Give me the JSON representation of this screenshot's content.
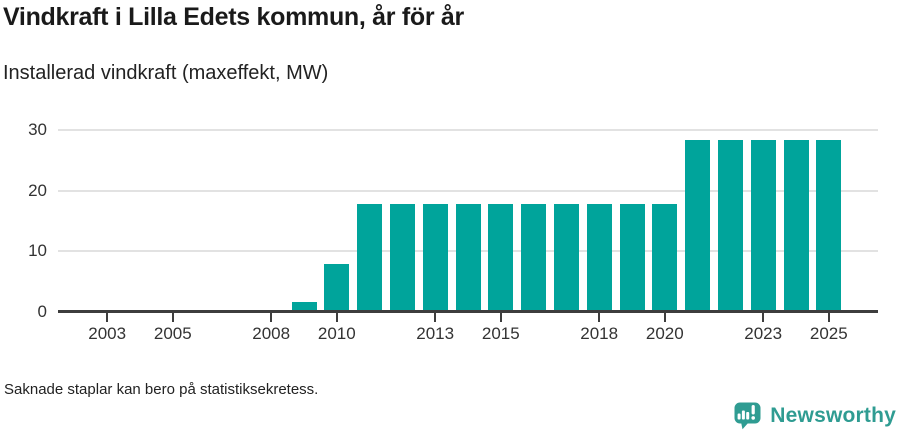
{
  "footer": {
    "note": "Saknade staplar kan bero på statistiksekretess.",
    "brand": "Newsworthy"
  },
  "colors": {
    "bar": "#00a49b",
    "grid": "#e2e2e2",
    "axis": "#3d3d3d",
    "text": "#333333",
    "brand_teal": "#2f9c92"
  },
  "chart_data": {
    "type": "bar",
    "title": "Vindkraft i Lilla Edets kommun, år för år",
    "subtitle": "Installerad vindkraft (maxeffekt, MW)",
    "unit": "MW",
    "xlabel": "",
    "ylabel": "Installerad vindkraft (maxeffekt, MW)",
    "x_domain": [
      2002,
      2026
    ],
    "ylim": [
      0,
      30
    ],
    "yticks": [
      0,
      10,
      20,
      30
    ],
    "xticks": [
      2003,
      2005,
      2008,
      2010,
      2013,
      2015,
      2018,
      2020,
      2023,
      2025
    ],
    "grid": "horizontal",
    "legend": "none",
    "x": [
      2009,
      2010,
      2011,
      2012,
      2013,
      2014,
      2015,
      2016,
      2017,
      2018,
      2019,
      2020,
      2021,
      2022,
      2023,
      2024,
      2025
    ],
    "values": [
      1.6,
      7.8,
      17.8,
      17.8,
      17.8,
      17.8,
      17.8,
      17.8,
      17.8,
      17.8,
      17.8,
      17.8,
      28.3,
      28.3,
      28.3,
      28.3,
      28.3
    ]
  }
}
